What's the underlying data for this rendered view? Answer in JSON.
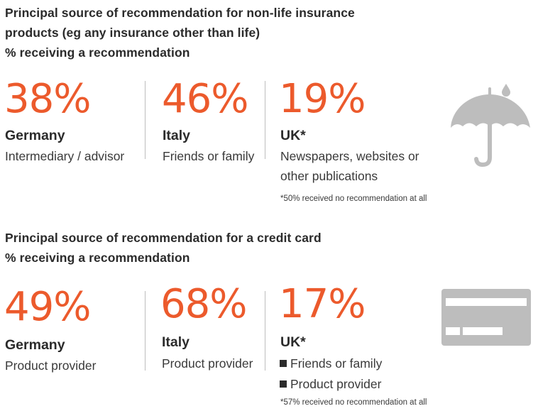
{
  "colors": {
    "accent": "#ec5a2c",
    "text": "#2b2b2b",
    "icon": "#bdbdbd"
  },
  "section1": {
    "title_line1": "Principal source of recommendation for non-life insurance",
    "title_line2": "products (eg any insurance other than life)",
    "subtitle": "% receiving a recommendation",
    "icon": "umbrella-icon",
    "stats": [
      {
        "pct": "38%",
        "country": "Germany",
        "desc_line1": "Intermediary / advisor"
      },
      {
        "pct": "46%",
        "country": "Italy",
        "desc_line1": "Friends or family"
      },
      {
        "pct": "19%",
        "country": "UK*",
        "desc_line1": "Newspapers, websites or",
        "desc_line2": "other publications",
        "note": "*50% received no recommendation at all"
      }
    ]
  },
  "section2": {
    "title": "Principal source of recommendation for a credit card",
    "subtitle": "% receiving a recommendation",
    "icon": "credit-card-icon",
    "stats": [
      {
        "pct": "49%",
        "country": "Germany",
        "desc_line1": "Product provider"
      },
      {
        "pct": "68%",
        "country": "Italy",
        "desc_line1": "Product provider"
      },
      {
        "pct": "17%",
        "country": "UK*",
        "bullets": [
          "Friends or family",
          "Product provider"
        ],
        "note": "*57% received no recommendation at all"
      }
    ]
  }
}
